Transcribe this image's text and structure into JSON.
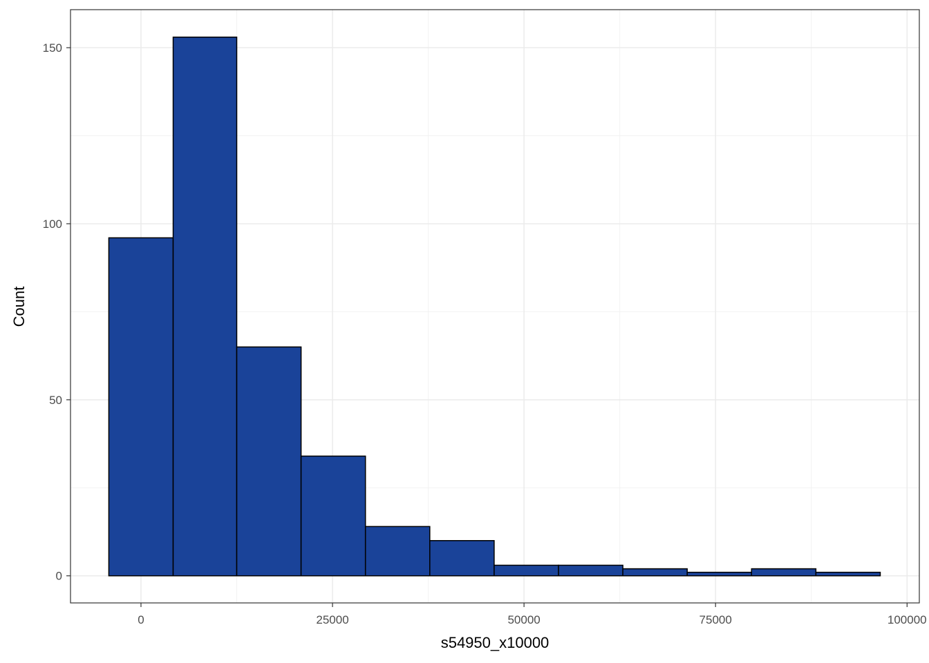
{
  "chart_data": {
    "type": "histogram",
    "x_label": "s54950_x10000",
    "y_label": "Count",
    "bins": [
      -4200,
      4200,
      12500,
      20900,
      29300,
      37700,
      46100,
      54500,
      62900,
      71300,
      79700,
      88100,
      96500
    ],
    "values": [
      96,
      153,
      65,
      34,
      14,
      10,
      3,
      3,
      2,
      1,
      2,
      1
    ],
    "color": "#1a4399",
    "edge_color": "#000000",
    "xlim": [
      -9200,
      101600
    ],
    "ylim": [
      -7.7,
      160.8
    ],
    "xticks": [
      0,
      25000,
      50000,
      75000,
      100000
    ],
    "yticks": [
      0,
      50,
      100,
      150
    ],
    "x_minor_ticks": [
      12500,
      37500,
      62500,
      87500
    ],
    "y_minor_ticks": [
      25,
      75,
      125
    ],
    "grid": true
  }
}
